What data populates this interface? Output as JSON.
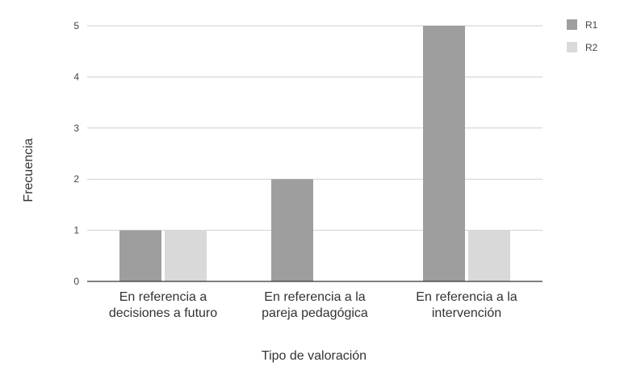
{
  "chart_data": {
    "type": "bar",
    "categories": [
      [
        "En referencia a",
        "decisiones a futuro"
      ],
      [
        "En referencia a la",
        "pareja pedagógica"
      ],
      [
        "En referencia a la",
        "intervención"
      ]
    ],
    "series": [
      {
        "name": "R1",
        "values": [
          1,
          2,
          5
        ],
        "color": "#9e9e9e"
      },
      {
        "name": "R2",
        "values": [
          1,
          0,
          1
        ],
        "color": "#d9d9d9"
      }
    ],
    "xlabel": "Tipo de valoración",
    "ylabel": "Frecuencia",
    "ylim": [
      0,
      5
    ],
    "yticks": [
      "0",
      "1",
      "2",
      "3",
      "4",
      "5"
    ],
    "grid": true,
    "legend": "top-right",
    "gridColor": "#cfcfcf",
    "axisColor": "#333333"
  }
}
